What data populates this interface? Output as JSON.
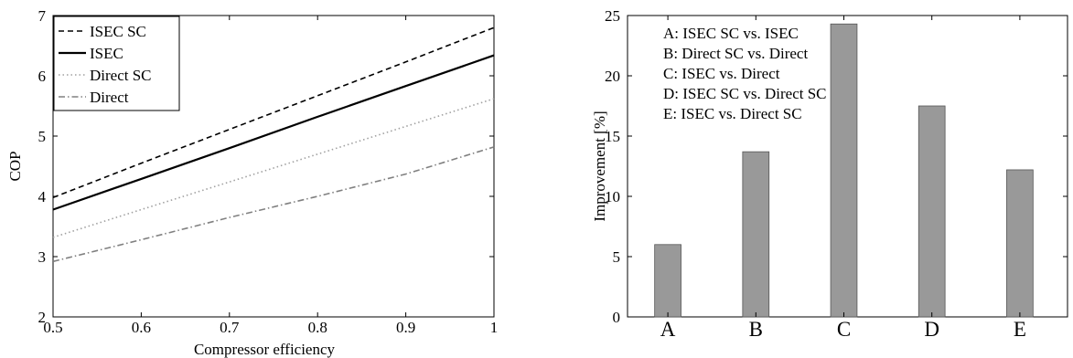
{
  "chart_data": [
    {
      "type": "line",
      "xlabel": "Compressor efficiency",
      "ylabel": "COP",
      "xlim": [
        0.5,
        1
      ],
      "ylim": [
        2,
        7
      ],
      "xticks": [
        "0.5",
        "0.6",
        "0.7",
        "0.8",
        "0.9",
        "1"
      ],
      "yticks": [
        "2",
        "3",
        "4",
        "5",
        "6",
        "7"
      ],
      "grid": false,
      "legend_position": "top-left",
      "x": [
        0.5,
        0.6,
        0.7,
        0.8,
        0.9,
        1.0
      ],
      "series": [
        {
          "name": "ISEC SC",
          "style": "dashed",
          "color": "#000000",
          "values": [
            3.98,
            4.55,
            5.11,
            5.67,
            6.23,
            6.8
          ]
        },
        {
          "name": "ISEC",
          "style": "solid",
          "color": "#000000",
          "values": [
            3.78,
            4.29,
            4.8,
            5.32,
            5.83,
            6.34
          ]
        },
        {
          "name": "Direct SC",
          "style": "dotted",
          "color": "#a0a0a0",
          "values": [
            3.32,
            3.78,
            4.24,
            4.7,
            5.16,
            5.62
          ]
        },
        {
          "name": "Direct",
          "style": "dashdot",
          "color": "#808080",
          "values": [
            2.92,
            3.28,
            3.65,
            4.0,
            4.37,
            4.82
          ]
        }
      ]
    },
    {
      "type": "bar",
      "ylabel": "Improvement [%]",
      "ylim": [
        0,
        25
      ],
      "yticks": [
        "0",
        "5",
        "10",
        "15",
        "20",
        "25"
      ],
      "categories": [
        "A",
        "B",
        "C",
        "D",
        "E"
      ],
      "values": [
        6.0,
        13.7,
        24.3,
        17.5,
        12.2
      ],
      "bar_color": "#999999",
      "annotations": [
        "A: ISEC SC vs. ISEC",
        "B: Direct SC vs. Direct",
        "C: ISEC vs. Direct",
        "D: ISEC SC vs. Direct SC",
        "E: ISEC vs. Direct SC"
      ]
    }
  ]
}
